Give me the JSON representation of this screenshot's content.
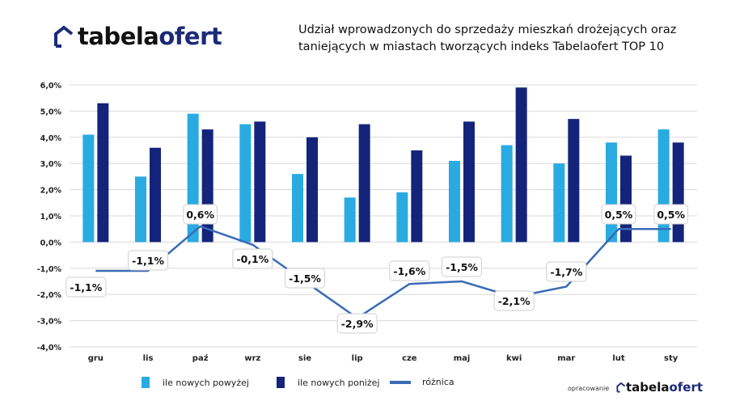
{
  "logo": {
    "part1": "tabela",
    "part2": "ofert"
  },
  "title": "Udział wprowadzonych do sprzedaży mieszkań drożejących oraz taniejących w miastach tworzących indeks Tabelaofert TOP 10",
  "credit": "opracowanie",
  "colors": {
    "above": "#29abe2",
    "below": "#14247a",
    "diff": "#3a6bb5"
  },
  "chart_data": {
    "type": "bar",
    "categories": [
      "gru",
      "lis",
      "paź",
      "wrz",
      "sie",
      "lip",
      "cze",
      "maj",
      "kwi",
      "mar",
      "lut",
      "sty"
    ],
    "series": [
      {
        "name": "ile nowych powyżej",
        "type": "bar",
        "values": [
          4.1,
          2.5,
          4.9,
          4.5,
          2.6,
          1.7,
          1.9,
          3.1,
          3.7,
          3.0,
          3.8,
          4.3
        ]
      },
      {
        "name": "ile nowych poniżej",
        "type": "bar",
        "values": [
          5.3,
          3.6,
          4.3,
          4.6,
          4.0,
          4.5,
          3.5,
          4.6,
          5.9,
          4.7,
          3.3,
          3.8
        ]
      },
      {
        "name": "różnica",
        "type": "line",
        "values": [
          -1.1,
          -1.1,
          0.6,
          -0.1,
          -1.5,
          -2.9,
          -1.6,
          -1.5,
          -2.1,
          -1.7,
          0.5,
          0.5
        ],
        "labels": [
          "-1,1%",
          "-1,1%",
          "0,6%",
          "-0,1%",
          "-1,5%",
          "-2,9%",
          "-1,6%",
          "-1,5%",
          "-2,1%",
          "-1,7%",
          "0,5%",
          "0,5%"
        ]
      }
    ],
    "ylim": [
      -4,
      6
    ],
    "yticks": [
      "6,0%",
      "5,0%",
      "4,0%",
      "3,0%",
      "2,0%",
      "1,0%",
      "0,0%",
      "-1,0%",
      "-2,0%",
      "-3,0%",
      "-4,0%"
    ],
    "grid": true,
    "legend": "bottom"
  }
}
